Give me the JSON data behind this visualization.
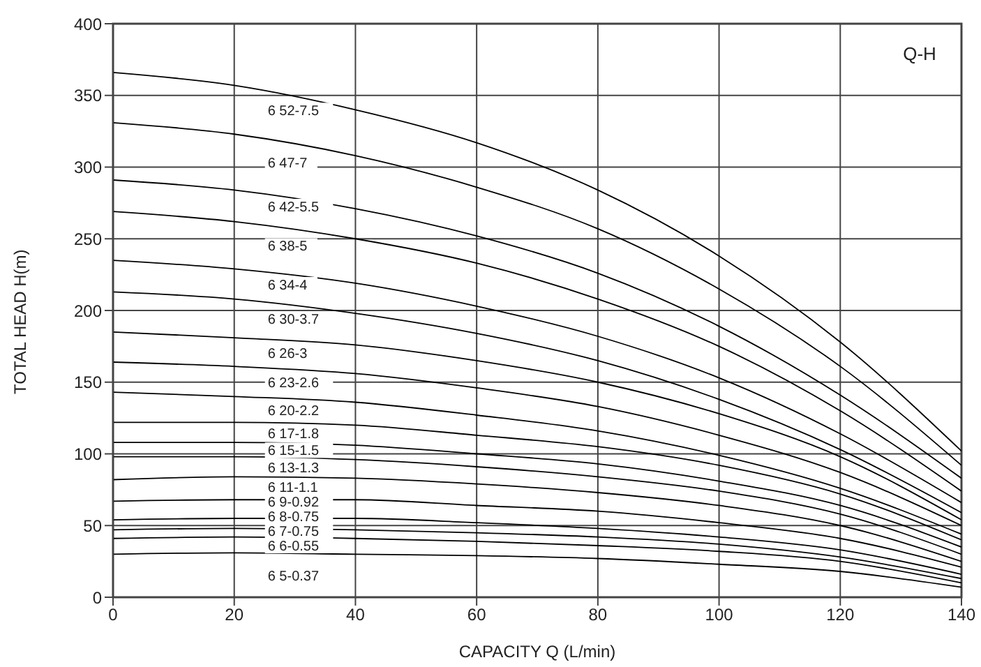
{
  "chart_data": {
    "type": "line",
    "title": "Q-H",
    "xlabel": "CAPACITY  Q (L/min)",
    "ylabel": "TOTAL HEAD  H(m)",
    "x": [
      0,
      20,
      40,
      60,
      80,
      100,
      120,
      140
    ],
    "xlim": [
      0,
      140
    ],
    "xticks": [
      0,
      20,
      40,
      60,
      80,
      100,
      120,
      140
    ],
    "ylim": [
      0,
      400
    ],
    "yticks": [
      0,
      50,
      100,
      150,
      200,
      250,
      300,
      350,
      400
    ],
    "grid": true,
    "legend": false,
    "marker": "none",
    "line_style": "solid",
    "series": [
      {
        "name": "6 52-7.5",
        "color": "#000000",
        "values": [
          366,
          357,
          340,
          317,
          284,
          238,
          178,
          102
        ]
      },
      {
        "name": "6 47-7",
        "color": "#000000",
        "values": [
          331,
          323,
          308,
          286,
          257,
          215,
          161,
          92
        ]
      },
      {
        "name": "6 42-5.5",
        "color": "#000000",
        "values": [
          291,
          284,
          271,
          252,
          226,
          189,
          141,
          83
        ]
      },
      {
        "name": "6 38-5",
        "color": "#000000",
        "values": [
          269,
          262,
          250,
          233,
          208,
          175,
          130,
          74
        ]
      },
      {
        "name": "6 34-4",
        "color": "#000000",
        "values": [
          235,
          229,
          219,
          203,
          182,
          153,
          114,
          66
        ]
      },
      {
        "name": "6 30-3.7",
        "color": "#000000",
        "values": [
          213,
          208,
          198,
          184,
          165,
          138,
          103,
          59
        ]
      },
      {
        "name": "6 26-3",
        "color": "#000000",
        "values": [
          185,
          181,
          176,
          165,
          150,
          128,
          98,
          54
        ]
      },
      {
        "name": "6 23-2.6",
        "color": "#000000",
        "values": [
          164,
          161,
          156,
          146,
          133,
          113,
          87,
          50
        ]
      },
      {
        "name": "6 20-2.2",
        "color": "#000000",
        "values": [
          143,
          140,
          136,
          127,
          116,
          99,
          76,
          44
        ]
      },
      {
        "name": "6 17-1.8",
        "color": "#000000",
        "values": [
          122,
          122,
          120,
          113,
          105,
          92,
          72,
          40
        ]
      },
      {
        "name": "6 15-1.5",
        "color": "#000000",
        "values": [
          108,
          108,
          106,
          100,
          93,
          81,
          64,
          35
        ]
      },
      {
        "name": "6 13-1.3",
        "color": "#000000",
        "values": [
          98,
          98,
          96,
          91,
          84,
          74,
          58,
          30
        ]
      },
      {
        "name": "6 11-1.1",
        "color": "#000000",
        "values": [
          82,
          84,
          83,
          79,
          73,
          64,
          50,
          25
        ]
      },
      {
        "name": "6 9-0.92",
        "color": "#000000",
        "values": [
          67,
          68,
          68,
          64,
          60,
          52,
          41,
          21
        ]
      },
      {
        "name": "6 8-0.75",
        "color": "#000000",
        "values": [
          54,
          55,
          55,
          52,
          48,
          42,
          33,
          16
        ]
      },
      {
        "name": "6 7-0.75",
        "color": "#000000",
        "values": [
          47,
          48,
          47,
          45,
          42,
          37,
          28,
          13
        ]
      },
      {
        "name": "6 6-0.55",
        "color": "#000000",
        "values": [
          41,
          42,
          41,
          39,
          36,
          32,
          25,
          10
        ]
      },
      {
        "name": "6 5-0.37",
        "color": "#000000",
        "values": [
          30,
          31,
          30,
          29,
          27,
          23,
          18,
          7
        ]
      }
    ]
  }
}
